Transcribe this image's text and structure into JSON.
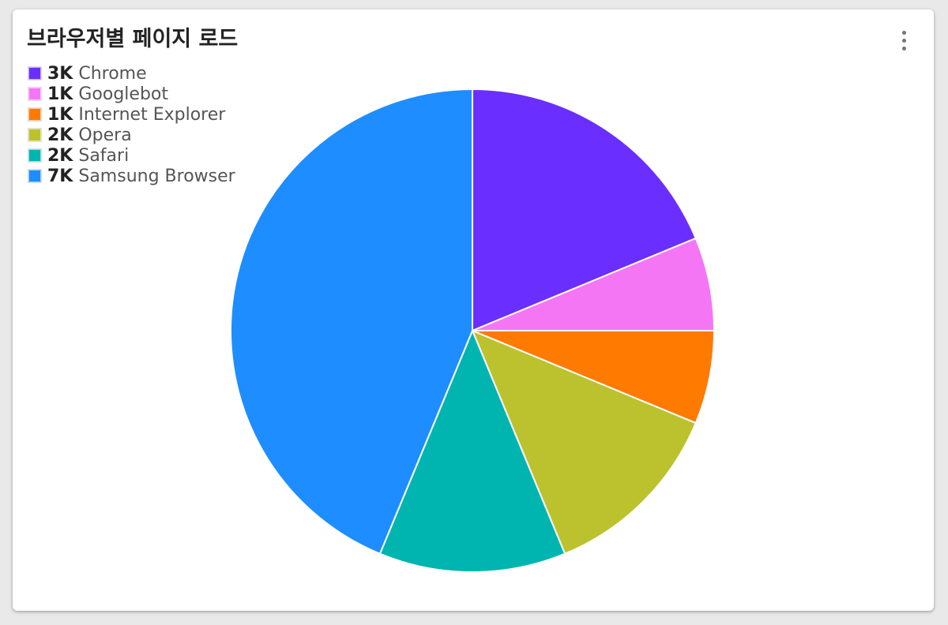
{
  "card": {
    "title": "브라우저별 페이지 로드",
    "menu_icon": "more-vertical-icon"
  },
  "chart_data": {
    "type": "pie",
    "title": "브라우저별 페이지 로드",
    "legend_position": "top-left",
    "start_angle_deg": 0,
    "direction": "clockwise",
    "slices": [
      {
        "label": "Chrome",
        "display": "3K",
        "value": 3,
        "color": "#6a2eff"
      },
      {
        "label": "Googlebot",
        "display": "1K",
        "value": 1,
        "color": "#f576f5"
      },
      {
        "label": "Internet Explorer",
        "display": "1K",
        "value": 1,
        "color": "#ff7a00"
      },
      {
        "label": "Opera",
        "display": "2K",
        "value": 2,
        "color": "#bcc22d"
      },
      {
        "label": "Safari",
        "display": "2K",
        "value": 2,
        "color": "#00b5b0"
      },
      {
        "label": "Samsung Browser",
        "display": "7K",
        "value": 7,
        "color": "#1e8dff"
      }
    ]
  }
}
